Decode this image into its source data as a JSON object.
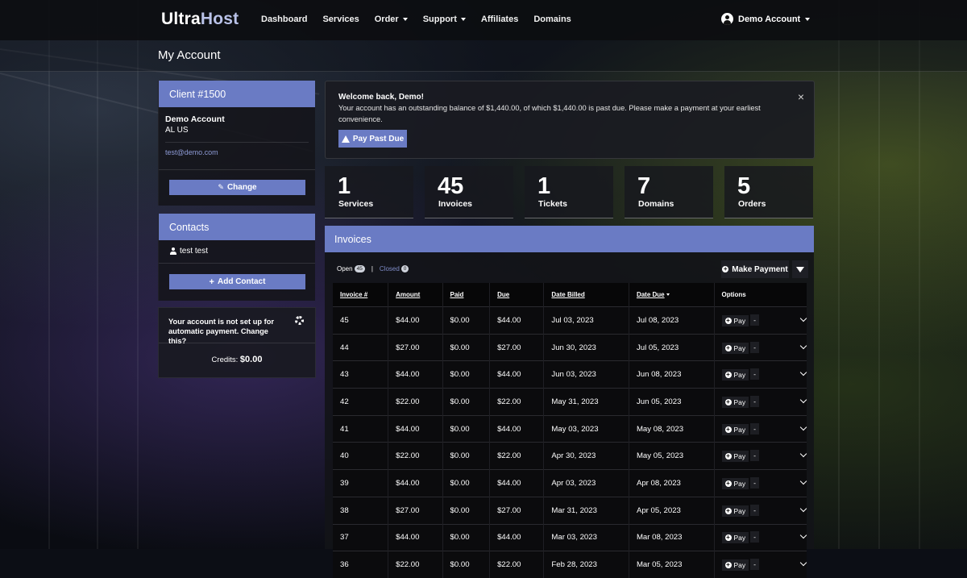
{
  "brand": {
    "part1": "Ultra",
    "part2": "Host"
  },
  "nav": {
    "items": [
      {
        "label": "Dashboard",
        "dropdown": false
      },
      {
        "label": "Services",
        "dropdown": false
      },
      {
        "label": "Order",
        "dropdown": true
      },
      {
        "label": "Support",
        "dropdown": true
      },
      {
        "label": "Affiliates",
        "dropdown": false
      },
      {
        "label": "Domains",
        "dropdown": false
      }
    ],
    "account_label": "Demo Account"
  },
  "page": {
    "title": "My Account"
  },
  "client": {
    "header": "Client #1500",
    "name": "Demo Account",
    "location": "AL US",
    "email": "test@demo.com",
    "change_label": "Change"
  },
  "contacts": {
    "header": "Contacts",
    "items": [
      "test test"
    ],
    "add_label": "Add Contact"
  },
  "autopay": {
    "message": "Your account is not set up for automatic payment. Change this?",
    "credits_label": "Credits:",
    "credits_value": "$0.00"
  },
  "alert": {
    "title": "Welcome back, Demo!",
    "message": "Your account has an outstanding balance of $1,440.00, of which $1,440.00 is past due. Please make a payment at your earliest convenience.",
    "button": "Pay Past Due",
    "close": "×"
  },
  "stats": [
    {
      "value": "1",
      "label": "Services"
    },
    {
      "value": "45",
      "label": "Invoices"
    },
    {
      "value": "1",
      "label": "Tickets"
    },
    {
      "value": "7",
      "label": "Domains"
    },
    {
      "value": "5",
      "label": "Orders"
    }
  ],
  "invoices": {
    "header": "Invoices",
    "filters": {
      "open_label": "Open",
      "open_count": "45",
      "separator": "|",
      "closed_label": "Closed",
      "closed_count": "0"
    },
    "make_payment": "Make Payment",
    "columns": [
      "Invoice #",
      "Amount",
      "Paid",
      "Due",
      "Date Billed",
      "Date Due",
      "Options"
    ],
    "pay_label": "Pay",
    "dash_label": "-",
    "rows": [
      {
        "id": "45",
        "amount": "$44.00",
        "paid": "$0.00",
        "due": "$44.00",
        "billed": "Jul 03, 2023",
        "date_due": "Jul 08, 2023"
      },
      {
        "id": "44",
        "amount": "$27.00",
        "paid": "$0.00",
        "due": "$27.00",
        "billed": "Jun 30, 2023",
        "date_due": "Jul 05, 2023"
      },
      {
        "id": "43",
        "amount": "$44.00",
        "paid": "$0.00",
        "due": "$44.00",
        "billed": "Jun 03, 2023",
        "date_due": "Jun 08, 2023"
      },
      {
        "id": "42",
        "amount": "$22.00",
        "paid": "$0.00",
        "due": "$22.00",
        "billed": "May 31, 2023",
        "date_due": "Jun 05, 2023"
      },
      {
        "id": "41",
        "amount": "$44.00",
        "paid": "$0.00",
        "due": "$44.00",
        "billed": "May 03, 2023",
        "date_due": "May 08, 2023"
      },
      {
        "id": "40",
        "amount": "$22.00",
        "paid": "$0.00",
        "due": "$22.00",
        "billed": "Apr 30, 2023",
        "date_due": "May 05, 2023"
      },
      {
        "id": "39",
        "amount": "$44.00",
        "paid": "$0.00",
        "due": "$44.00",
        "billed": "Apr 03, 2023",
        "date_due": "Apr 08, 2023"
      },
      {
        "id": "38",
        "amount": "$27.00",
        "paid": "$0.00",
        "due": "$27.00",
        "billed": "Mar 31, 2023",
        "date_due": "Apr 05, 2023"
      },
      {
        "id": "37",
        "amount": "$44.00",
        "paid": "$0.00",
        "due": "$44.00",
        "billed": "Mar 03, 2023",
        "date_due": "Mar 08, 2023"
      },
      {
        "id": "36",
        "amount": "$22.00",
        "paid": "$0.00",
        "due": "$22.00",
        "billed": "Feb 28, 2023",
        "date_due": "Mar 05, 2023"
      }
    ]
  },
  "colors": {
    "accent": "#6a7bc4",
    "brand_secondary": "#b9c2e8"
  },
  "icons": {
    "user": "user-icon",
    "pencil": "pencil-icon",
    "plus": "plus-icon",
    "gear": "gear-icon",
    "warning": "warning-icon",
    "filter": "filter-icon",
    "chevron": "chevron-down-icon"
  }
}
